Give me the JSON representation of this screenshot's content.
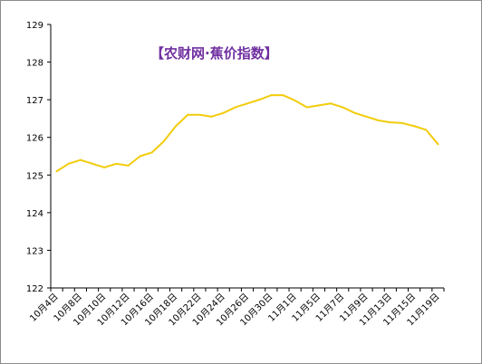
{
  "chart_data": {
    "type": "line",
    "title": "【农财网·蕉价指数】",
    "xlabel": "",
    "ylabel": "",
    "ylim": [
      122,
      129
    ],
    "yticks": [
      122,
      123,
      124,
      125,
      126,
      127,
      128,
      129
    ],
    "grid": false,
    "legend": "none",
    "colors": {
      "line": "#f2cc0c",
      "title": "#7030a0",
      "axis": "#000000"
    },
    "x_tick_labels": [
      "10月4日",
      "10月8日",
      "10月10日",
      "10月12日",
      "10月16日",
      "10月18日",
      "10月22日",
      "10月24日",
      "10月26日",
      "10月30日",
      "11月1日",
      "11月5日",
      "11月7日",
      "11月9日",
      "11月13日",
      "11月15日",
      "11月19日"
    ],
    "series": [
      {
        "values": [
          125.1,
          125.3,
          125.4,
          125.3,
          125.2,
          125.3,
          125.25,
          125.5,
          125.6,
          125.9,
          126.3,
          126.6,
          126.6,
          126.55,
          126.65,
          126.8,
          126.9,
          127.0,
          127.12,
          127.12,
          126.98,
          126.8,
          126.85,
          126.9,
          126.8,
          126.65,
          126.55,
          126.45,
          126.4,
          126.38,
          126.3,
          126.2,
          125.82
        ]
      }
    ]
  }
}
